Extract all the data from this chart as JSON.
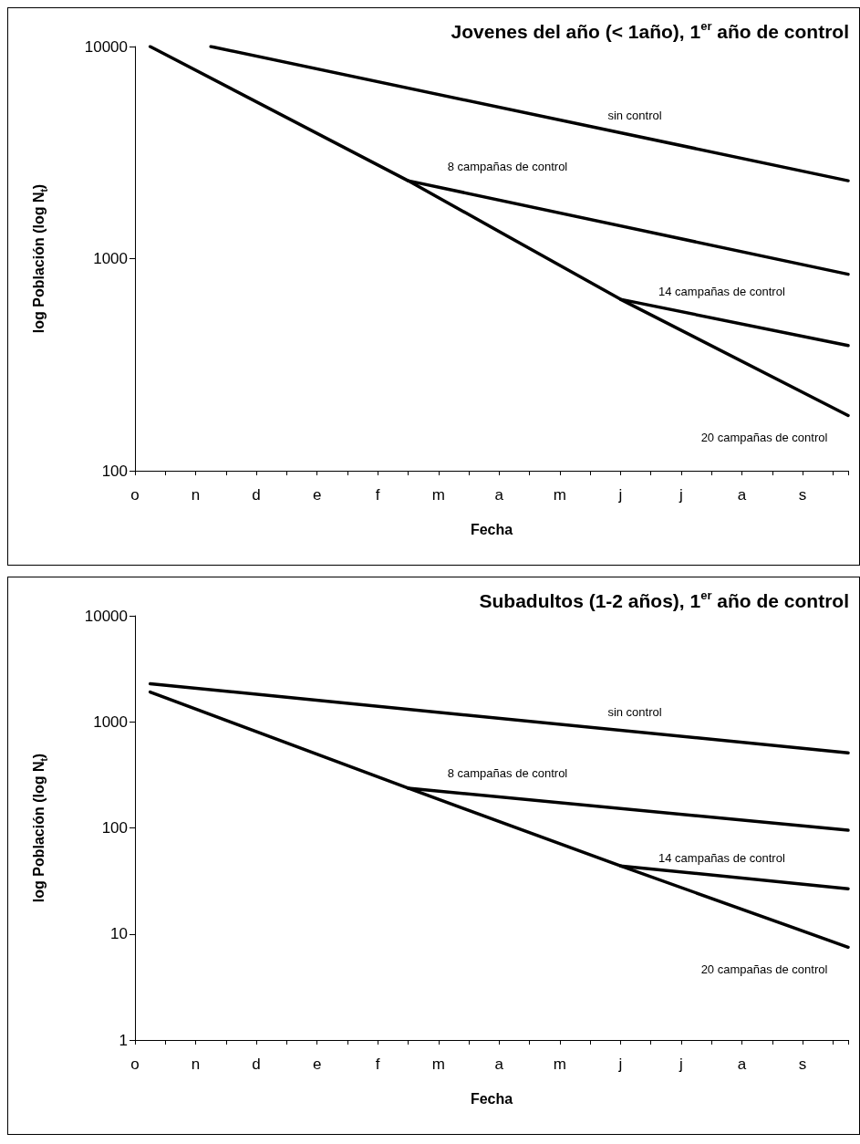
{
  "chart_data": [
    {
      "type": "line",
      "title": "Jovenes del año (< 1año), 1$^{er}$ año de control",
      "xlabel": "Fecha",
      "ylabel": "log Población (log N$_{t}$)",
      "log": "y",
      "grid": false,
      "legend": false,
      "marker": "none",
      "line_style": "solid",
      "ylim": [
        100,
        10000
      ],
      "yticks": [
        100,
        1000,
        10000
      ],
      "categories": [
        "o",
        null,
        null,
        null,
        "n",
        null,
        null,
        null,
        "d",
        null,
        null,
        null,
        "e",
        null,
        null,
        null,
        "f",
        null,
        null,
        null,
        "m",
        null,
        null,
        null,
        "a",
        null,
        null,
        null,
        "m",
        null,
        null,
        null,
        "j",
        null,
        null,
        null,
        "j",
        null,
        null,
        null,
        "a",
        null,
        null,
        null,
        "s",
        null,
        null,
        null
      ],
      "series": [
        {
          "name": "sin control",
          "color": "#000000",
          "values": [
            null,
            null,
            null,
            null,
            null,
            10000,
            null,
            null,
            null,
            null,
            null,
            null,
            null,
            null,
            null,
            null,
            null,
            null,
            null,
            null,
            null,
            null,
            null,
            null,
            null,
            null,
            null,
            null,
            null,
            null,
            null,
            null,
            null,
            null,
            null,
            null,
            null,
            null,
            null,
            null,
            null,
            null,
            null,
            null,
            null,
            null,
            null,
            2330
          ]
        },
        {
          "name": "8 campañas de control",
          "color": "#000000",
          "values": [
            null,
            null,
            null,
            null,
            null,
            null,
            null,
            null,
            null,
            null,
            null,
            null,
            null,
            null,
            null,
            null,
            null,
            null,
            2330,
            null,
            null,
            null,
            null,
            null,
            null,
            null,
            null,
            null,
            null,
            null,
            null,
            null,
            null,
            null,
            null,
            null,
            null,
            null,
            null,
            null,
            null,
            null,
            null,
            null,
            null,
            null,
            null,
            844
          ]
        },
        {
          "name": "14 campañas de control",
          "color": "#000000",
          "values": [
            null,
            null,
            null,
            null,
            null,
            null,
            null,
            null,
            null,
            null,
            null,
            null,
            null,
            null,
            null,
            null,
            null,
            null,
            null,
            null,
            null,
            null,
            null,
            null,
            null,
            null,
            null,
            null,
            null,
            null,
            null,
            null,
            643,
            null,
            null,
            null,
            null,
            null,
            null,
            null,
            null,
            null,
            null,
            null,
            null,
            null,
            null,
            389
          ]
        },
        {
          "name": "20 campañas de control",
          "color": "#000000",
          "values": [
            null,
            10000,
            null,
            null,
            null,
            null,
            null,
            null,
            null,
            null,
            null,
            null,
            null,
            null,
            null,
            null,
            null,
            null,
            2330,
            null,
            null,
            null,
            null,
            null,
            null,
            null,
            null,
            null,
            null,
            null,
            null,
            null,
            643,
            null,
            null,
            null,
            null,
            null,
            null,
            null,
            null,
            null,
            null,
            null,
            null,
            null,
            null,
            182
          ]
        }
      ]
    },
    {
      "type": "line",
      "title": "Subadultos (1-2 años), 1$^{er}$ año de control",
      "xlabel": "Fecha",
      "ylabel": "log Población (log N$_{t}$)",
      "log": "y",
      "grid": false,
      "legend": false,
      "marker": "none",
      "line_style": "solid",
      "ylim": [
        1,
        10000
      ],
      "yticks": [
        1,
        10,
        100,
        1000,
        10000
      ],
      "categories": [
        "o",
        null,
        null,
        null,
        "n",
        null,
        null,
        null,
        "d",
        null,
        null,
        null,
        "e",
        null,
        null,
        null,
        "f",
        null,
        null,
        null,
        "m",
        null,
        null,
        null,
        "a",
        null,
        null,
        null,
        "m",
        null,
        null,
        null,
        "j",
        null,
        null,
        null,
        "j",
        null,
        null,
        null,
        "a",
        null,
        null,
        null,
        "s",
        null,
        null,
        null
      ],
      "series": [
        {
          "name": "sin control",
          "color": "#000000",
          "values": [
            null,
            2290,
            null,
            null,
            null,
            null,
            null,
            null,
            null,
            null,
            null,
            null,
            null,
            null,
            null,
            null,
            null,
            null,
            null,
            null,
            null,
            null,
            null,
            null,
            null,
            null,
            null,
            null,
            null,
            null,
            null,
            null,
            null,
            null,
            null,
            null,
            null,
            null,
            null,
            null,
            null,
            null,
            null,
            null,
            null,
            null,
            null,
            510
          ]
        },
        {
          "name": "8 campañas de control",
          "color": "#000000",
          "values": [
            null,
            null,
            null,
            null,
            null,
            null,
            null,
            null,
            null,
            null,
            null,
            null,
            null,
            null,
            null,
            null,
            null,
            null,
            237,
            null,
            null,
            null,
            null,
            null,
            null,
            null,
            null,
            null,
            null,
            null,
            null,
            null,
            null,
            null,
            null,
            null,
            null,
            null,
            null,
            null,
            null,
            null,
            null,
            null,
            null,
            null,
            null,
            95
          ]
        },
        {
          "name": "14 campañas de control",
          "color": "#000000",
          "values": [
            null,
            null,
            null,
            null,
            null,
            null,
            null,
            null,
            null,
            null,
            null,
            null,
            null,
            null,
            null,
            null,
            null,
            null,
            null,
            null,
            null,
            null,
            null,
            null,
            null,
            null,
            null,
            null,
            null,
            null,
            null,
            null,
            43.8,
            null,
            null,
            null,
            null,
            null,
            null,
            null,
            null,
            null,
            null,
            null,
            null,
            null,
            null,
            26.7
          ]
        },
        {
          "name": "20 campañas de control",
          "color": "#000000",
          "values": [
            null,
            1910,
            null,
            null,
            null,
            null,
            null,
            null,
            null,
            null,
            null,
            null,
            null,
            null,
            null,
            null,
            null,
            null,
            237,
            null,
            null,
            null,
            null,
            null,
            null,
            null,
            null,
            null,
            null,
            null,
            null,
            null,
            43.8,
            null,
            null,
            null,
            null,
            null,
            null,
            null,
            null,
            null,
            null,
            null,
            null,
            null,
            null,
            7.5
          ]
        }
      ]
    }
  ]
}
